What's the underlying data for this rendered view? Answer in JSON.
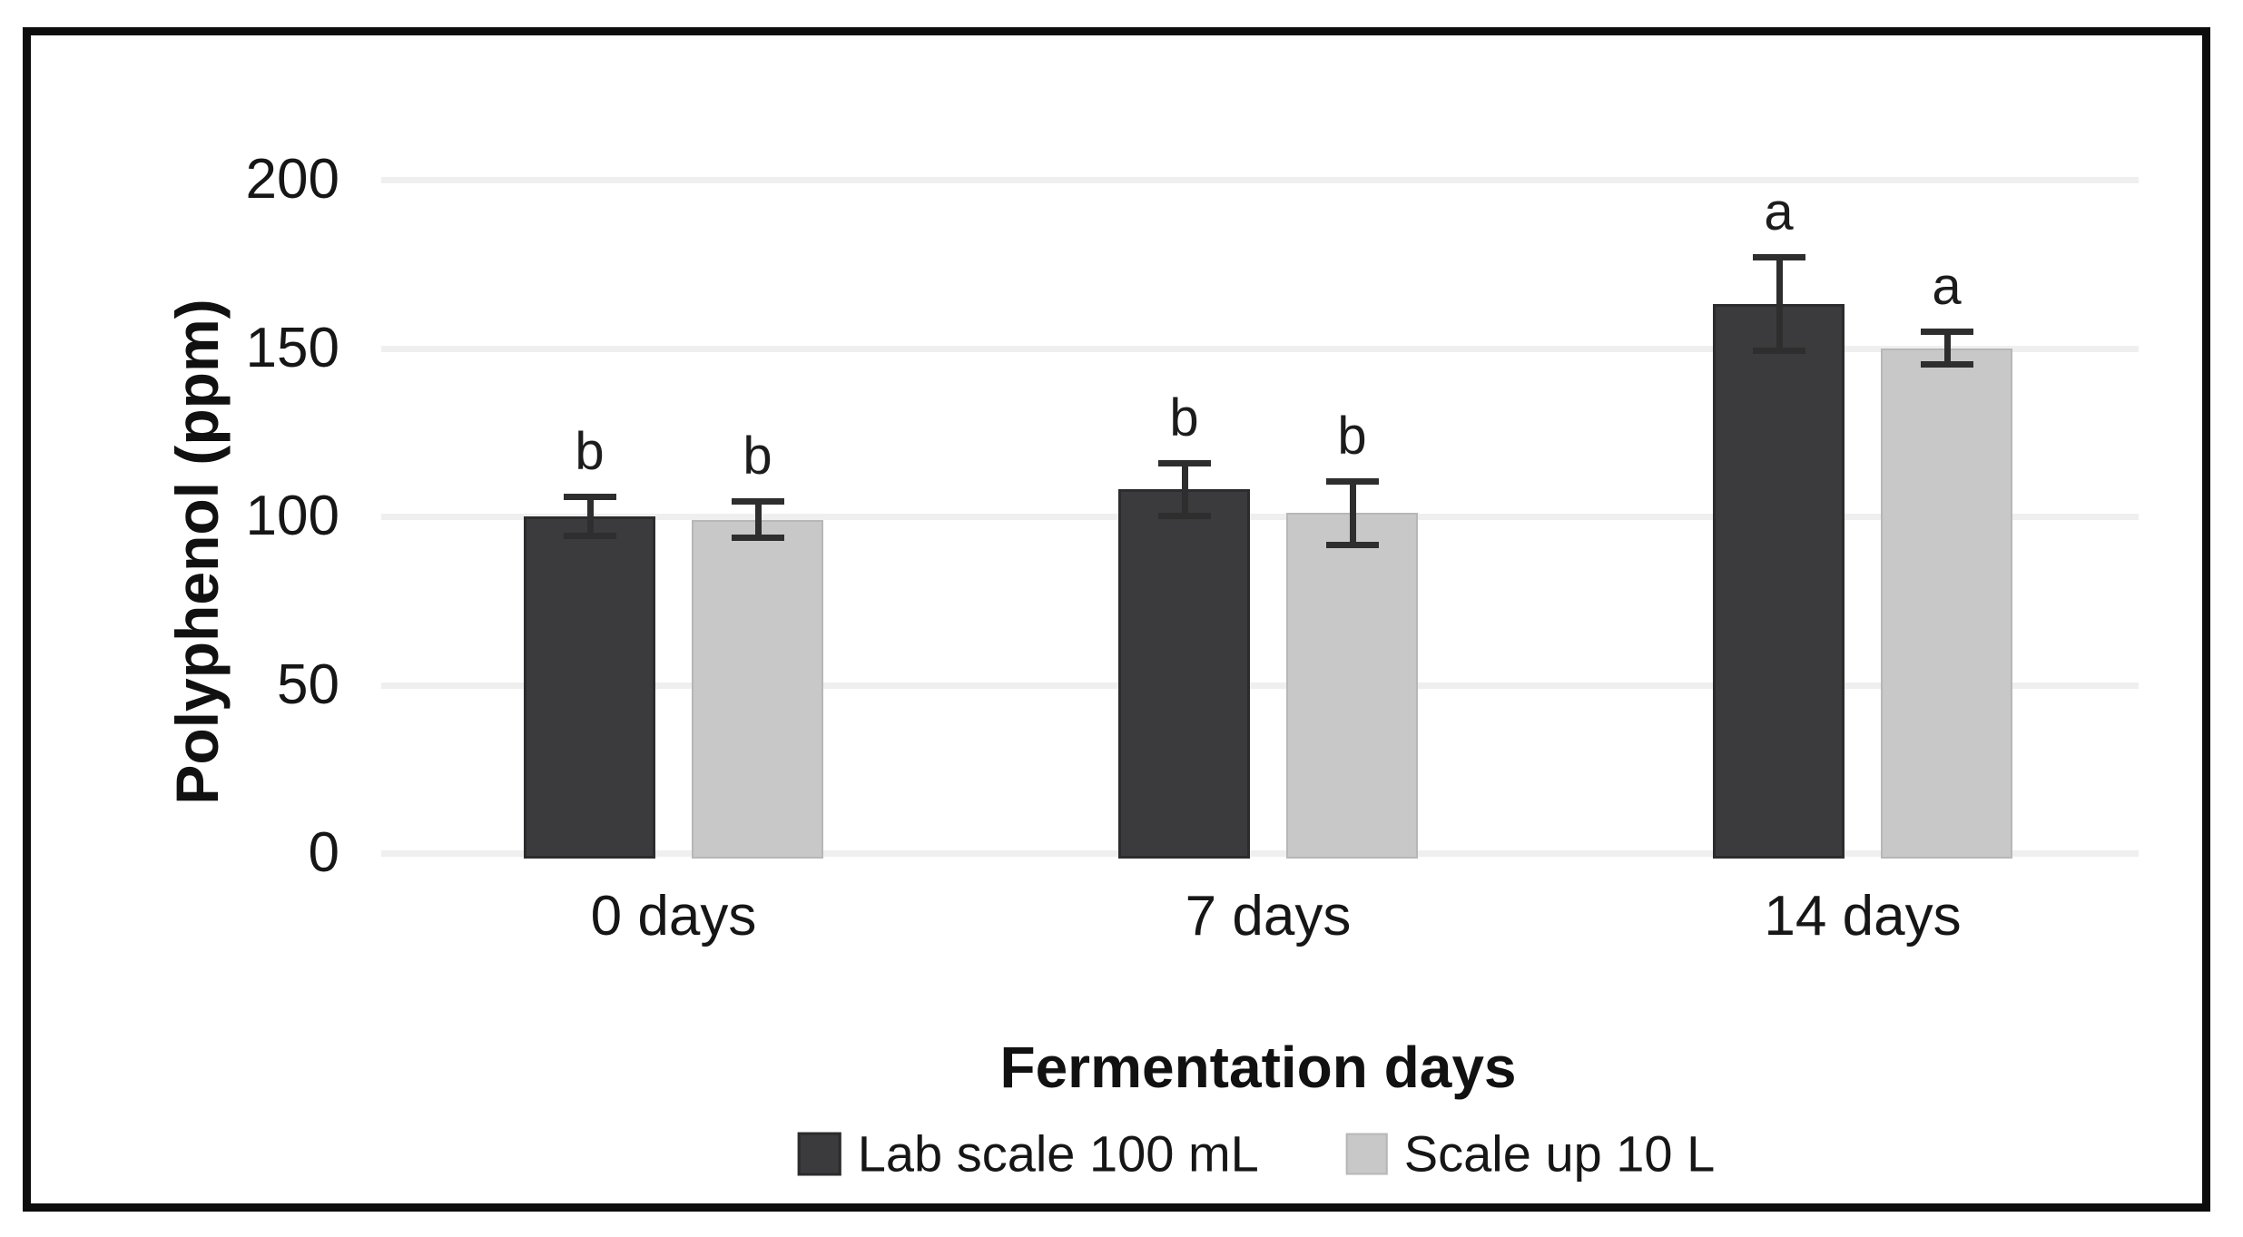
{
  "figure": {
    "description": "Grouped bar chart of polyphenol content over fermentation days for two fermentation scales, with error bars and significance letters"
  },
  "chart_data": {
    "type": "bar",
    "title": "",
    "xlabel": "Fermentation days",
    "ylabel": "Polyphenol (ppm)",
    "categories": [
      "0 days",
      "7 days",
      "14 days"
    ],
    "y_ticks": [
      0,
      50,
      100,
      150,
      200
    ],
    "ylim": [
      0,
      200
    ],
    "grid": "horizontal",
    "legend_position": "bottom",
    "series": [
      {
        "name": "Lab scale 100 mL",
        "color": "#3b3b3d",
        "values": [
          100,
          108,
          163
        ],
        "errors": [
          6,
          8,
          14
        ],
        "sig_letters": [
          "b",
          "b",
          "a"
        ]
      },
      {
        "name": "Scale up 10 L",
        "color": "#c8c8c8",
        "values": [
          99,
          101,
          150
        ],
        "errors": [
          5.5,
          9.5,
          5
        ],
        "sig_letters": [
          "b",
          "b",
          "a"
        ]
      }
    ]
  }
}
